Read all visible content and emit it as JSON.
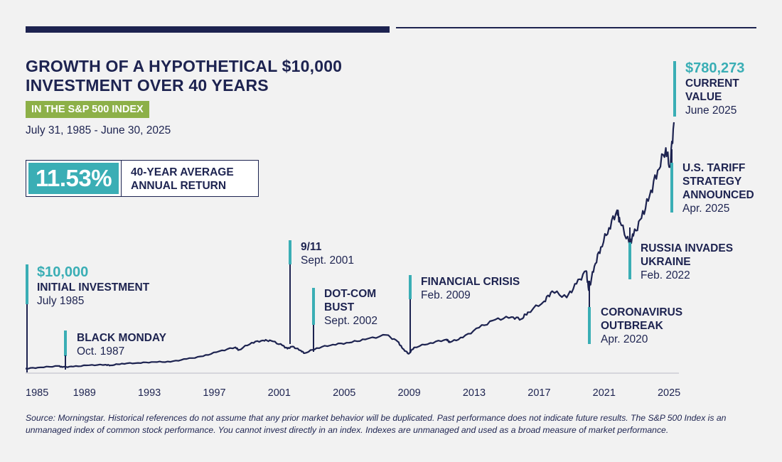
{
  "header": {
    "title_line1": "GROWTH OF A HYPOTHETICAL $10,000",
    "title_line2": "INVESTMENT OVER 40 YEARS",
    "subtitle": "IN THE S&P 500 INDEX",
    "date_range": "July 31, 1985 - June 30, 2025"
  },
  "summary": {
    "average_return": "11.53%",
    "label_line1": "40-YEAR AVERAGE",
    "label_line2": "ANNUAL RETURN"
  },
  "annotations": {
    "initial": {
      "value": "$10,000",
      "label": "INITIAL INVESTMENT",
      "date": "July 1985"
    },
    "black_monday": {
      "label": "BLACK MONDAY",
      "date": "Oct. 1987"
    },
    "nine_eleven": {
      "label": "9/11",
      "date": "Sept. 2001"
    },
    "dotcom": {
      "label_line1": "DOT-COM",
      "label_line2": "BUST",
      "date": "Sept. 2002"
    },
    "financial_crisis": {
      "label": "FINANCIAL CRISIS",
      "date": "Feb. 2009"
    },
    "coronavirus": {
      "label_line1": "CORONAVIRUS",
      "label_line2": "OUTBREAK",
      "date": "Apr. 2020"
    },
    "russia": {
      "label_line1": "RUSSIA INVADES",
      "label_line2": "UKRAINE",
      "date": "Feb. 2022"
    },
    "tariff": {
      "label_line1": "U.S. TARIFF",
      "label_line2": "STRATEGY",
      "label_line3": "ANNOUNCED",
      "date": "Apr. 2025"
    },
    "current": {
      "value": "$780,273",
      "label_line1": "CURRENT",
      "label_line2": "VALUE",
      "date": "June 2025"
    }
  },
  "source_note": "Source: Morningstar. Historical references do not assume that any prior market behavior will be duplicated. Past performance does not indicate future results. The S&P 500 Index is an unmanaged index of common stock performance. You cannot invest directly in an index. Indexes are unmanaged and used as a broad measure of market performance.",
  "colors": {
    "navy": "#1d2350",
    "teal": "#3aaeb5",
    "green": "#8db048",
    "background": "#f2f2f2"
  },
  "chart_data": {
    "type": "line",
    "x_ticks": [
      "1985",
      "1989",
      "1993",
      "1997",
      "2001",
      "2005",
      "2009",
      "2013",
      "2017",
      "2021",
      "2025"
    ],
    "xlim": [
      1985.58,
      2025.5
    ],
    "ylim": [
      0,
      800000
    ],
    "grid": false,
    "legend": "none",
    "series": [
      {
        "x": [
          1985.58,
          1986.5,
          1987.6,
          1987.83,
          1988.5,
          1989.5,
          1990.5,
          1990.8,
          1991.5,
          1992.5,
          1993.5,
          1994.5,
          1995.5,
          1996.5,
          1997.5,
          1998.5,
          1998.7,
          1999.5,
          2000.2,
          2000.7,
          2001.4,
          2001.7,
          2002.0,
          2002.5,
          2002.75,
          2003.5,
          2004.5,
          2005.5,
          2006.5,
          2007.8,
          2008.5,
          2008.8,
          2009.17,
          2009.5,
          2010.5,
          2011.5,
          2011.7,
          2012.5,
          2013.5,
          2014.5,
          2015.5,
          2016.1,
          2016.5,
          2017.5,
          2018.0,
          2018.9,
          2019.5,
          2020.1,
          2020.25,
          2020.6,
          2021.0,
          2021.5,
          2022.0,
          2022.17,
          2022.75,
          2023.0,
          2023.5,
          2024.0,
          2024.5,
          2025.0,
          2025.25,
          2025.5
        ],
        "y": [
          10000,
          13500,
          18000,
          14500,
          16000,
          20500,
          22000,
          20000,
          25500,
          27500,
          30500,
          31000,
          40000,
          48500,
          64000,
          76500,
          68000,
          91000,
          98000,
          97000,
          82000,
          72000,
          79000,
          67000,
          58000,
          74000,
          85000,
          91000,
          101000,
          115000,
          94000,
          72000,
          56000,
          76000,
          90000,
          101000,
          92000,
          107000,
          138000,
          163000,
          171000,
          165000,
          186000,
          220000,
          252000,
          232000,
          275000,
          315000,
          255000,
          330000,
          390000,
          450000,
          505000,
          470000,
          400000,
          425000,
          480000,
          550000,
          630000,
          700000,
          640000,
          780273
        ]
      }
    ]
  }
}
